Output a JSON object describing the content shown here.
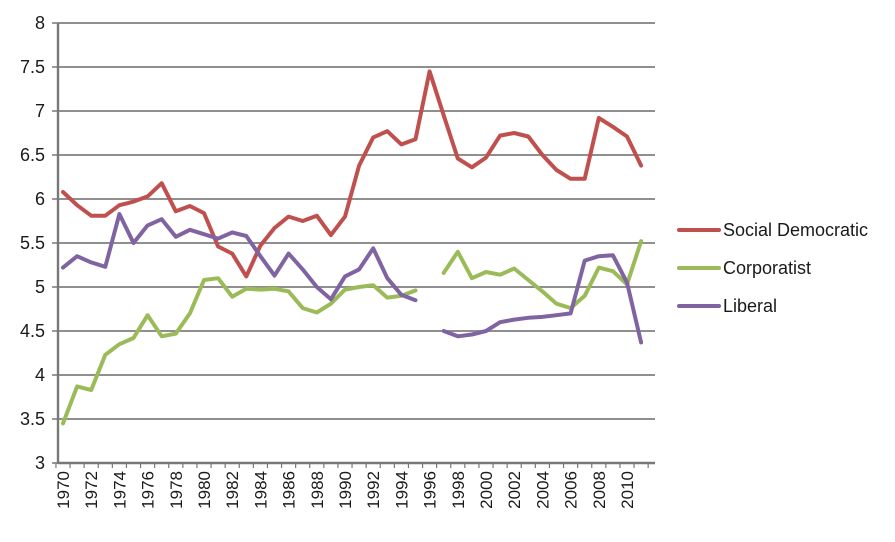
{
  "chart_data": {
    "type": "line",
    "title": "",
    "xlabel": "",
    "ylabel": "",
    "x": [
      1970,
      1971,
      1972,
      1973,
      1974,
      1975,
      1976,
      1977,
      1978,
      1979,
      1980,
      1981,
      1982,
      1983,
      1984,
      1985,
      1986,
      1987,
      1988,
      1989,
      1990,
      1991,
      1992,
      1993,
      1994,
      1995,
      1996,
      1997,
      1998,
      1999,
      2000,
      2001,
      2002,
      2003,
      2004,
      2005,
      2006,
      2007,
      2008,
      2009,
      2010,
      2011
    ],
    "x_tick_labels": [
      "1970",
      "1972",
      "1974",
      "1976",
      "1978",
      "1980",
      "1982",
      "1984",
      "1986",
      "1988",
      "1990",
      "1992",
      "1994",
      "1996",
      "1998",
      "2000",
      "2002",
      "2004",
      "2006",
      "2008",
      "2010"
    ],
    "ylim": [
      3,
      8
    ],
    "y_ticks": [
      3,
      3.5,
      4,
      4.5,
      5,
      5.5,
      6,
      6.5,
      7,
      7.5,
      8
    ],
    "grid": true,
    "legend_position": "right",
    "series": [
      {
        "name": "Social Democratic",
        "color": "#C0504D",
        "values": [
          6.08,
          5.93,
          5.81,
          5.81,
          5.93,
          5.97,
          6.03,
          6.18,
          5.86,
          5.92,
          5.84,
          5.46,
          5.38,
          5.12,
          5.47,
          5.67,
          5.8,
          5.75,
          5.81,
          5.59,
          5.8,
          6.38,
          6.7,
          6.77,
          6.62,
          6.68,
          7.45,
          6.95,
          6.46,
          6.36,
          6.47,
          6.72,
          6.75,
          6.71,
          6.5,
          6.33,
          6.23,
          6.23,
          6.92,
          6.82,
          6.71,
          6.38
        ]
      },
      {
        "name": "Corporatist",
        "color": "#9BBB59",
        "values": [
          3.45,
          3.87,
          3.83,
          4.23,
          4.35,
          4.42,
          4.68,
          4.44,
          4.47,
          4.7,
          5.08,
          5.1,
          4.89,
          4.98,
          4.97,
          4.98,
          4.95,
          4.76,
          4.71,
          4.81,
          4.97,
          5.0,
          5.02,
          4.88,
          4.9,
          4.96,
          null,
          5.16,
          5.4,
          5.1,
          5.17,
          5.14,
          5.21,
          5.08,
          4.95,
          4.81,
          4.76,
          4.9,
          5.22,
          5.18,
          5.03,
          5.52
        ]
      },
      {
        "name": "Liberal",
        "color": "#8064A2",
        "values": [
          5.22,
          5.35,
          5.28,
          5.23,
          5.83,
          5.5,
          5.7,
          5.77,
          5.57,
          5.65,
          5.6,
          5.55,
          5.62,
          5.58,
          5.35,
          5.13,
          5.38,
          5.2,
          5.0,
          4.86,
          5.12,
          5.2,
          5.44,
          5.1,
          4.91,
          4.85,
          null,
          4.5,
          4.44,
          4.46,
          4.5,
          4.6,
          4.63,
          4.65,
          4.66,
          4.68,
          4.7,
          5.3,
          5.35,
          5.36,
          5.05,
          4.37
        ]
      }
    ]
  },
  "colors": {
    "background": "#ffffff",
    "gridline": "#8F8F8F",
    "axis": "#787878",
    "text": "#1a1a1a"
  }
}
